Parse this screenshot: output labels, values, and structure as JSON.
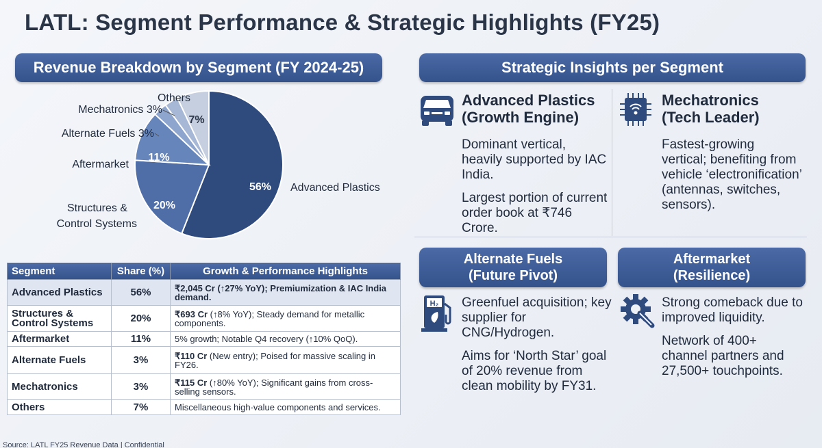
{
  "title": "LATL: Segment Performance & Strategic Highlights (FY25)",
  "left_header": "Revenue Breakdown by Segment (FY 2024-25)",
  "right_header": "Strategic Insights per Segment",
  "colors": {
    "accent": "#3d5c98",
    "slice_advanced_plastics": "#2f4a7c",
    "slice_structures": "#4f6ea8",
    "slice_aftermarket": "#6585bb",
    "slice_alt_fuels": "#8ea6ce",
    "slice_mechatronics": "#a7b8d6",
    "slice_others": "#c6cfdf"
  },
  "chart_data": {
    "type": "pie",
    "categories": [
      "Advanced Plastics",
      "Structures & Control Systems",
      "Aftermarket",
      "Alternate Fuels",
      "Mechatronics",
      "Others"
    ],
    "values": [
      56,
      20,
      11,
      3,
      3,
      7
    ],
    "labels": {
      "advanced_plastics": "Advanced Plastics",
      "structures_line1": "Structures &",
      "structures_line2": "Control Systems",
      "aftermarket": "Aftermarket",
      "alt_fuels": "Alternate Fuels 3%",
      "mechatronics": "Mechatronics 3%",
      "others": "Others"
    },
    "pct_labels": {
      "advanced_plastics": "56%",
      "structures": "20%",
      "aftermarket": "11%",
      "others": "7%"
    }
  },
  "table": {
    "headers": [
      "Segment",
      "Share (%)",
      "Growth & Performance Highlights"
    ],
    "rows": [
      {
        "segment": "Advanced Plastics",
        "share": "56%",
        "bold": "₹2,045 Cr (↑27% YoY); Premiumization & IAC India demand.",
        "rest": ""
      },
      {
        "segment": "Structures & Control Systems",
        "share": "20%",
        "bold": "₹693 Cr",
        "rest": " (↑8% YoY); Steady demand for metallic components."
      },
      {
        "segment": "Aftermarket",
        "share": "11%",
        "bold": "",
        "rest": "5% growth; Notable Q4 recovery (↑10% QoQ)."
      },
      {
        "segment": "Alternate Fuels",
        "share": "3%",
        "bold": "₹110 Cr",
        "rest": " (New entry); Poised for massive scaling in FY26."
      },
      {
        "segment": "Mechatronics",
        "share": "3%",
        "bold": "₹115 Cr",
        "rest": " (↑80% YoY); Significant gains from cross-selling sensors."
      },
      {
        "segment": "Others",
        "share": "7%",
        "bold": "",
        "rest": "Miscellaneous high-value components and services."
      }
    ]
  },
  "source": "Source: LATL FY25 Revenue Data | Confidential",
  "insights": {
    "advanced_plastics": {
      "title_line1": "Advanced Plastics",
      "title_line2": "(Growth Engine)",
      "icon": "car-front-icon",
      "p1": "Dominant vertical, heavily supported by IAC India.",
      "p2": "Largest portion of current order book at ₹746 Crore."
    },
    "mechatronics": {
      "title_line1": "Mechatronics",
      "title_line2": "(Tech Leader)",
      "icon": "chip-icon",
      "p1": "Fastest-growing vertical; benefiting from vehicle ‘electronification’ (antennas, switches, sensors)."
    },
    "alternate_fuels": {
      "title_line1": "Alternate Fuels",
      "title_line2": "(Future Pivot)",
      "icon": "fuel-pump-icon",
      "icon_text": "H₂",
      "p1": "Greenfuel acquisition; key supplier for CNG/Hydrogen.",
      "p2": "Aims for ‘North Star’ goal of 20% revenue from clean mobility by FY31."
    },
    "aftermarket": {
      "title_line1": "Aftermarket",
      "title_line2": "(Resilience)",
      "icon": "gear-wrench-icon",
      "p1": "Strong comeback due to improved liquidity.",
      "p2": "Network of 400+ channel partners and 27,500+ touchpoints."
    }
  }
}
